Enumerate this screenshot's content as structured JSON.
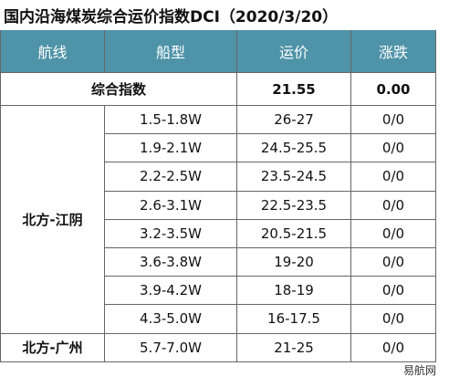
{
  "title": "国内沿海煤炭综合运价指数DCI（2020/3/20）",
  "header": [
    "航线",
    "船型",
    "运价",
    "涨跌"
  ],
  "summary": {
    "label": "综合指数",
    "price": "21.55",
    "change": "0.00"
  },
  "groups": [
    {
      "route": "北方-江阴",
      "rows": [
        [
          "1.5-1.8W",
          "26-27",
          "0/0"
        ],
        [
          "1.9-2.1W",
          "24.5-25.5",
          "0/0"
        ],
        [
          "2.2-2.5W",
          "23.5-24.5",
          "0/0"
        ],
        [
          "2.6-3.1W",
          "22.5-23.5",
          "0/0"
        ],
        [
          "3.2-3.5W",
          "20.5-21.5",
          "0/0"
        ],
        [
          "3.6-3.8W",
          "19-20",
          "0/0"
        ],
        [
          "3.9-4.2W",
          "18-19",
          "0/0"
        ],
        [
          "4.3-5.0W",
          "16-17.5",
          "0/0"
        ]
      ]
    },
    {
      "route": "北方-广州",
      "rows": [
        [
          "5.7-7.0W",
          "21-25",
          "0/0"
        ]
      ]
    }
  ],
  "footer": "易航网"
}
